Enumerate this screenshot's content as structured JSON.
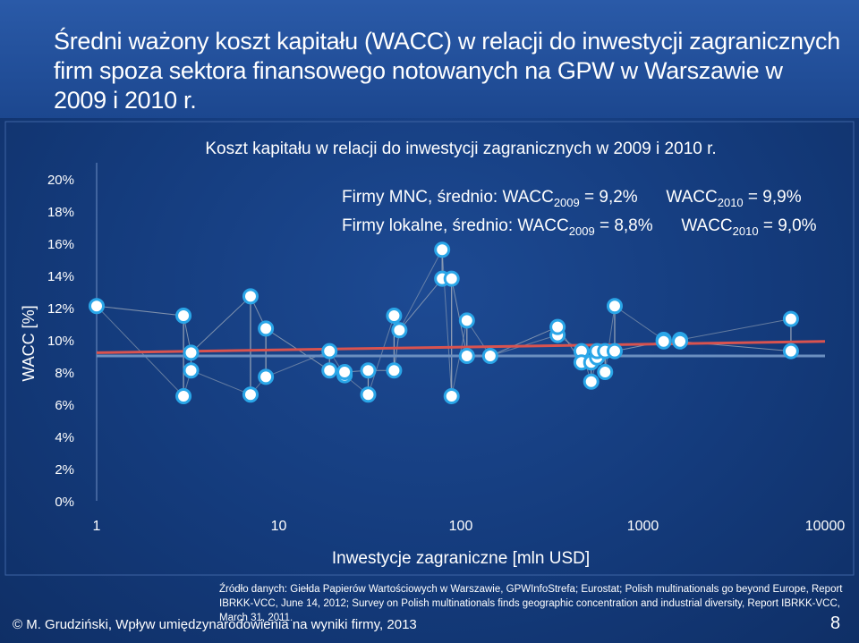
{
  "slide": {
    "title": "Średni ważony koszt kapitału (WACC) w relacji do inwestycji zagranicznych firm spoza sektora finansowego notowanych na GPW w Warszawie w 2009 i 2010 r.",
    "source": "Źródło danych: Giełda Papierów Wartościowych w Warszawie, GPWInfoStrefa; Eurostat; Polish multinationals go beyond Europe, Report IBRKK-VCC, June 14, 2012; Survey on Polish multinationals finds geographic concentration and industrial diversity, Report IBRKK-VCC, March 31, 2011.",
    "author": "© M. Grudziński, Wpływ umiędzynarodowienia na wyniki firmy, 2013",
    "page_number": "8"
  },
  "colors": {
    "background": "#143b7c",
    "title_band": "#1f4b94",
    "point_fill": "#ffffff",
    "point_stroke": "#2aa6e8",
    "connector": "#9aa6b8",
    "trend_2010": "#d9534f",
    "trend_2009": "#6b8fc0"
  },
  "chart_data": {
    "type": "scatter",
    "title": "Koszt kapitału w relacji do inwestycji zagranicznych w 2009 i 2010 r.",
    "xlabel": "Inwestycje zagraniczne [mln USD]",
    "ylabel": "WACC [%]",
    "x_scale": "log",
    "xlim": [
      1,
      10000
    ],
    "ylim": [
      0,
      20
    ],
    "x_ticks": [
      "1",
      "10",
      "100",
      "1000",
      "10000"
    ],
    "y_ticks": [
      "0%",
      "2%",
      "4%",
      "6%",
      "8%",
      "10%",
      "12%",
      "14%",
      "16%",
      "18%",
      "20%"
    ],
    "grid": false,
    "annotations": [
      {
        "label": "Firmy MNC, średnio: WACC",
        "sub1": "2009",
        "v1": " = 9,2%",
        "label2": "WACC",
        "sub2": "2010",
        "v2": " = 9,9%"
      },
      {
        "label": "Firmy lokalne, średnio: WACC",
        "sub1": "2009",
        "v1": " = 8,8%",
        "label2": "WACC",
        "sub2": "2010",
        "v2": " = 9,0%"
      }
    ],
    "pairs": [
      {
        "x": 1.0,
        "y2009": 12.1,
        "y2010": 12.1
      },
      {
        "x": 3.0,
        "y2009": 6.5,
        "y2010": 11.5
      },
      {
        "x": 3.3,
        "y2009": 8.1,
        "y2010": 9.2
      },
      {
        "x": 7.0,
        "y2009": 6.6,
        "y2010": 12.7
      },
      {
        "x": 8.5,
        "y2009": 7.7,
        "y2010": 10.7
      },
      {
        "x": 19.0,
        "y2009": 9.3,
        "y2010": 8.1
      },
      {
        "x": 23.0,
        "y2009": 7.8,
        "y2010": 8.0
      },
      {
        "x": 31.0,
        "y2009": 6.6,
        "y2010": 8.1
      },
      {
        "x": 43.0,
        "y2009": 11.5,
        "y2010": 8.1
      },
      {
        "x": 46.0,
        "y2009": 10.6,
        "y2010": 10.6
      },
      {
        "x": 79.0,
        "y2009": 15.6,
        "y2010": 13.8
      },
      {
        "x": 89.0,
        "y2009": 6.5,
        "y2010": 13.8
      },
      {
        "x": 108.0,
        "y2009": 11.2,
        "y2010": 9.0
      },
      {
        "x": 145.0,
        "y2009": 9.0,
        "y2010": 9.0
      },
      {
        "x": 340.0,
        "y2009": 10.3,
        "y2010": 10.8
      },
      {
        "x": 460.0,
        "y2009": 9.3,
        "y2010": 8.6
      },
      {
        "x": 520.0,
        "y2009": 7.4,
        "y2010": 8.6
      },
      {
        "x": 560.0,
        "y2009": 8.9,
        "y2010": 9.3
      },
      {
        "x": 620.0,
        "y2009": 8.0,
        "y2010": 9.3
      },
      {
        "x": 700.0,
        "y2009": 12.1,
        "y2010": 9.3
      },
      {
        "x": 1300.0,
        "y2009": 10.0,
        "y2010": 9.9
      },
      {
        "x": 1600.0,
        "y2009": 10.0,
        "y2010": 9.9
      },
      {
        "x": 6500.0,
        "y2009": 11.3,
        "y2010": 9.3
      }
    ],
    "series": [
      {
        "name": "MNC 2010 trend",
        "x": [
          1,
          10000
        ],
        "values": [
          9.2,
          9.9
        ]
      },
      {
        "name": "lokalne trend",
        "x": [
          1,
          10000
        ],
        "values": [
          9.0,
          9.0
        ]
      }
    ]
  }
}
